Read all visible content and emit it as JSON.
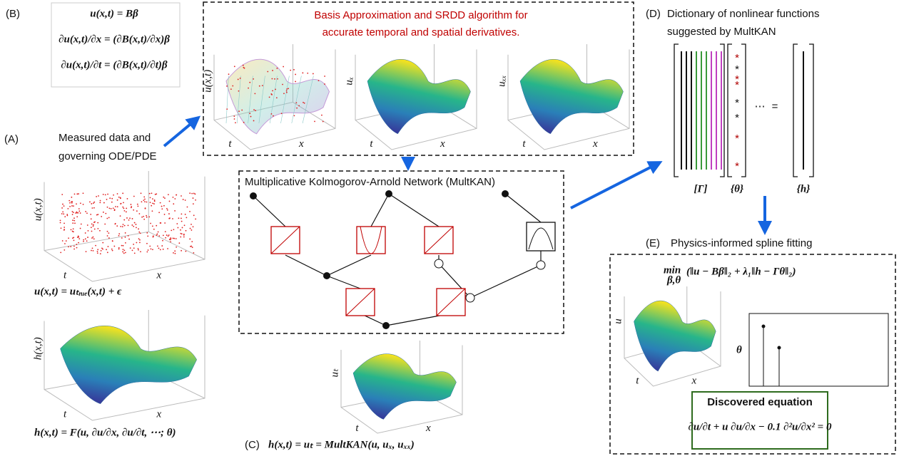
{
  "panel_b": {
    "label": "(B)",
    "equations": [
      "u(x,t) = Bβ",
      "∂u(x,t)/∂x = (∂B(x,t)/∂x)β",
      "∂u(x,t)/∂t = (∂B(x,t)/∂t)β"
    ]
  },
  "basis": {
    "title_lines": [
      "Basis Approximation and SRDD algorithm for",
      "accurate temporal and spatial derivatives."
    ],
    "plots": [
      {
        "zlabel": "u(x,t)",
        "tlabel": "t",
        "xlabel": "x"
      },
      {
        "zlabel": "uₓ",
        "tlabel": "t",
        "xlabel": "x"
      },
      {
        "zlabel": "uₓₓ",
        "tlabel": "t",
        "xlabel": "x"
      }
    ]
  },
  "panel_a": {
    "label": "(A)",
    "caption_lines": [
      "Measured data and",
      "governing ODE/PDE"
    ],
    "plots": [
      {
        "zlabel": "u(x,t)",
        "tlabel": "t",
        "xlabel": "x",
        "equation": "u(x,t) = uₜᵣᵤₑ(x,t) + ϵ"
      },
      {
        "zlabel": "h(x,t)",
        "tlabel": "t",
        "xlabel": "x",
        "equation": "h(x,t) = F(u, ∂u/∂x, ∂u/∂t, ⋯; θ)"
      }
    ]
  },
  "multkan": {
    "title": "Multiplicative Kolmogorov-Arnold Network (MultKAN)",
    "plot": {
      "zlabel": "uₜ",
      "tlabel": "t",
      "xlabel": "x"
    },
    "label": "(C)",
    "equation": "h(x,t) = uₜ = MultKAN(u, uₓ, uₓₓ)"
  },
  "dictionary": {
    "label": "(D)",
    "caption_lines": [
      "Dictionary of nonlinear functions",
      "suggested by MultKAN"
    ],
    "matrix_label": "[Γ]",
    "coef_label": "{θ}",
    "target_label": "{h}",
    "ellipsis": "⋯",
    "equals": "="
  },
  "fitting": {
    "label": "(E)",
    "title": "Physics-informed spline fitting",
    "objective_op": "min",
    "objective_sub": "β,θ",
    "objective": "(‖u − Bβ‖₂ + λ₁‖h − Γθ‖₂)",
    "plot": {
      "zlabel": "u",
      "tlabel": "t",
      "xlabel": "x"
    },
    "coef_axis": "θ",
    "result_title": "Discovered equation",
    "result": "∂u/∂t + u ∂u/∂x − 0.1 ∂²u/∂x² = 0"
  }
}
